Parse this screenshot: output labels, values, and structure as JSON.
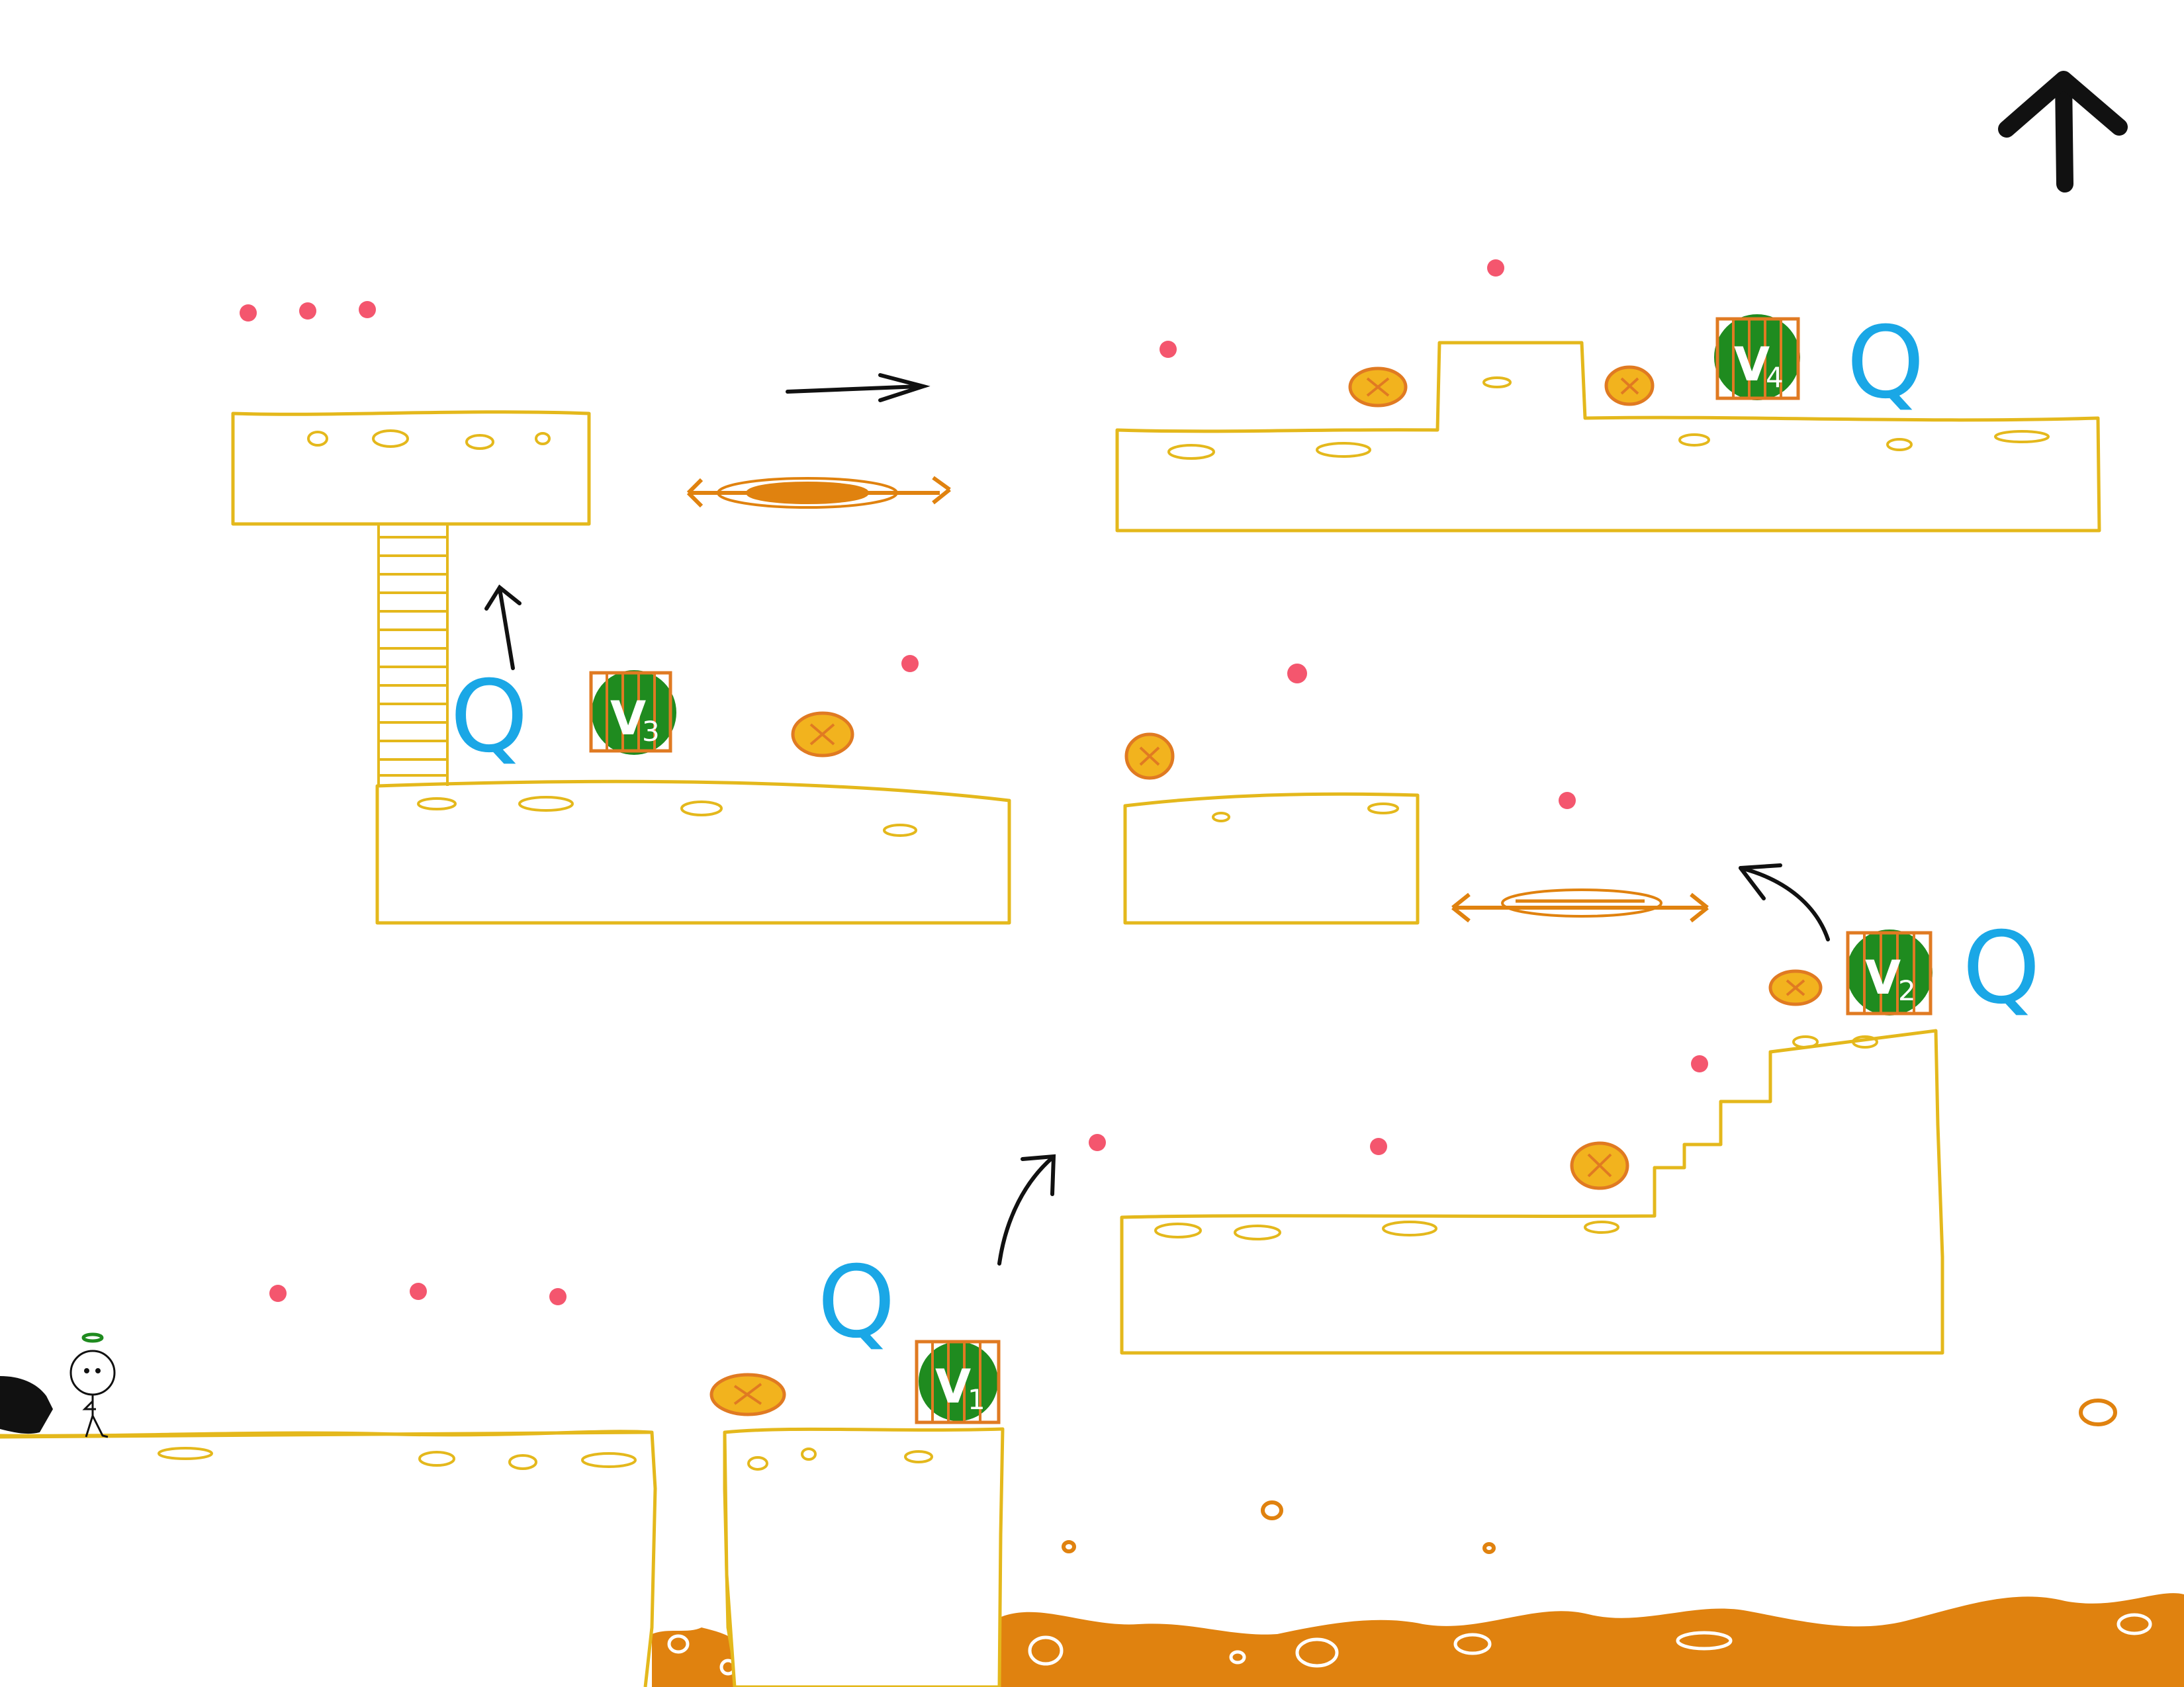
{
  "level": {
    "colors": {
      "ground": "#e4b81c",
      "lava": "#e0820f",
      "orb": "#f4566e",
      "key": "#1aa7e6",
      "cage_fill": "#1f8b1f",
      "cage_bars": "#e07a22",
      "coin_fill": "#f2b31e",
      "coin_edge": "#e07a22",
      "arrow": "#111111"
    },
    "cages": [
      {
        "letter": "V",
        "number": "1"
      },
      {
        "letter": "V",
        "number": "2"
      },
      {
        "letter": "V",
        "number": "3"
      },
      {
        "letter": "V",
        "number": "4"
      }
    ],
    "keys": [
      {
        "glyph": "Q"
      },
      {
        "glyph": "Q"
      },
      {
        "glyph": "Q"
      },
      {
        "glyph": "Q"
      }
    ]
  }
}
